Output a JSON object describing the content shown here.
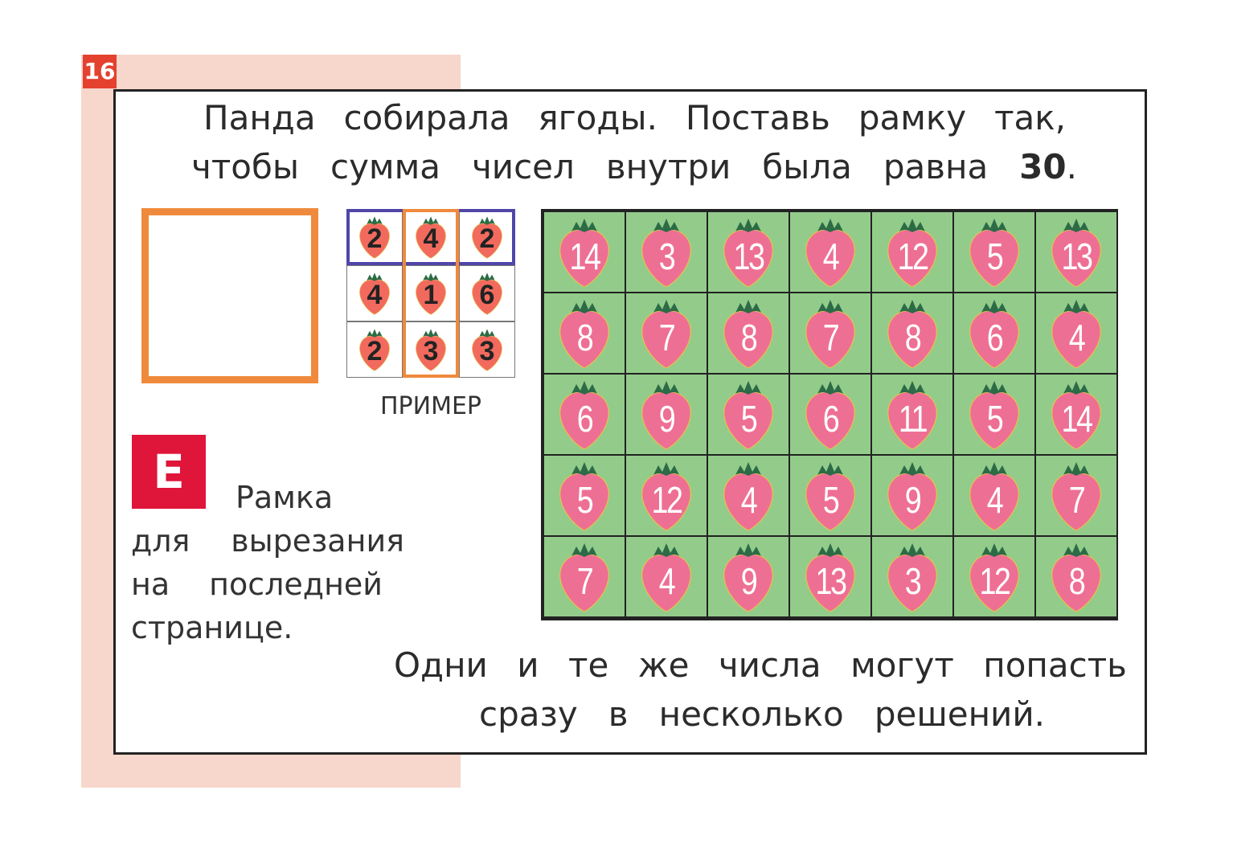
{
  "page_number": "16",
  "title": {
    "line1": [
      "Панда",
      "собирала",
      "ягоды.",
      "Поставь",
      "рамку",
      "так,"
    ],
    "line2_words": [
      "чтобы",
      "сумма",
      "чисел",
      "внутри",
      "была",
      "равна"
    ],
    "line2_target": "30",
    "line2_end": "."
  },
  "example": {
    "label": "ПРИМЕР",
    "cells": [
      [
        "2",
        "4",
        "2"
      ],
      [
        "4",
        "1",
        "6"
      ],
      [
        "2",
        "3",
        "3"
      ]
    ]
  },
  "badge": "Е",
  "note": {
    "line1": "Рамка",
    "line2": [
      "для",
      "вырезания"
    ],
    "line3": [
      "на",
      "последней"
    ],
    "line4": "странице."
  },
  "grid": [
    [
      "14",
      "3",
      "13",
      "4",
      "12",
      "5",
      "13"
    ],
    [
      "8",
      "7",
      "8",
      "7",
      "8",
      "6",
      "4"
    ],
    [
      "6",
      "9",
      "5",
      "6",
      "11",
      "5",
      "14"
    ],
    [
      "5",
      "12",
      "4",
      "5",
      "9",
      "4",
      "7"
    ],
    [
      "7",
      "4",
      "9",
      "13",
      "3",
      "12",
      "8"
    ]
  ],
  "footer": {
    "line1": [
      "Одни",
      "и",
      "те",
      "же",
      "числа",
      "могут",
      "попасть"
    ],
    "line2": [
      "сразу",
      "в",
      "несколько",
      "решений."
    ]
  },
  "colors": {
    "page_band": "#f7d6cc",
    "page_number_bg": "#e4412f",
    "cut_frame": "#ef8a3c",
    "badge_bg": "#e0153a",
    "grid_cell": "#93cb8b",
    "berry_big": "#ee6f94",
    "berry_small": "#f26a5e",
    "leaf": "#2c6b46",
    "example_row_frame": "#5046a8",
    "example_col_frame": "#ef8a3c"
  },
  "icons": [
    "strawberry-icon"
  ]
}
